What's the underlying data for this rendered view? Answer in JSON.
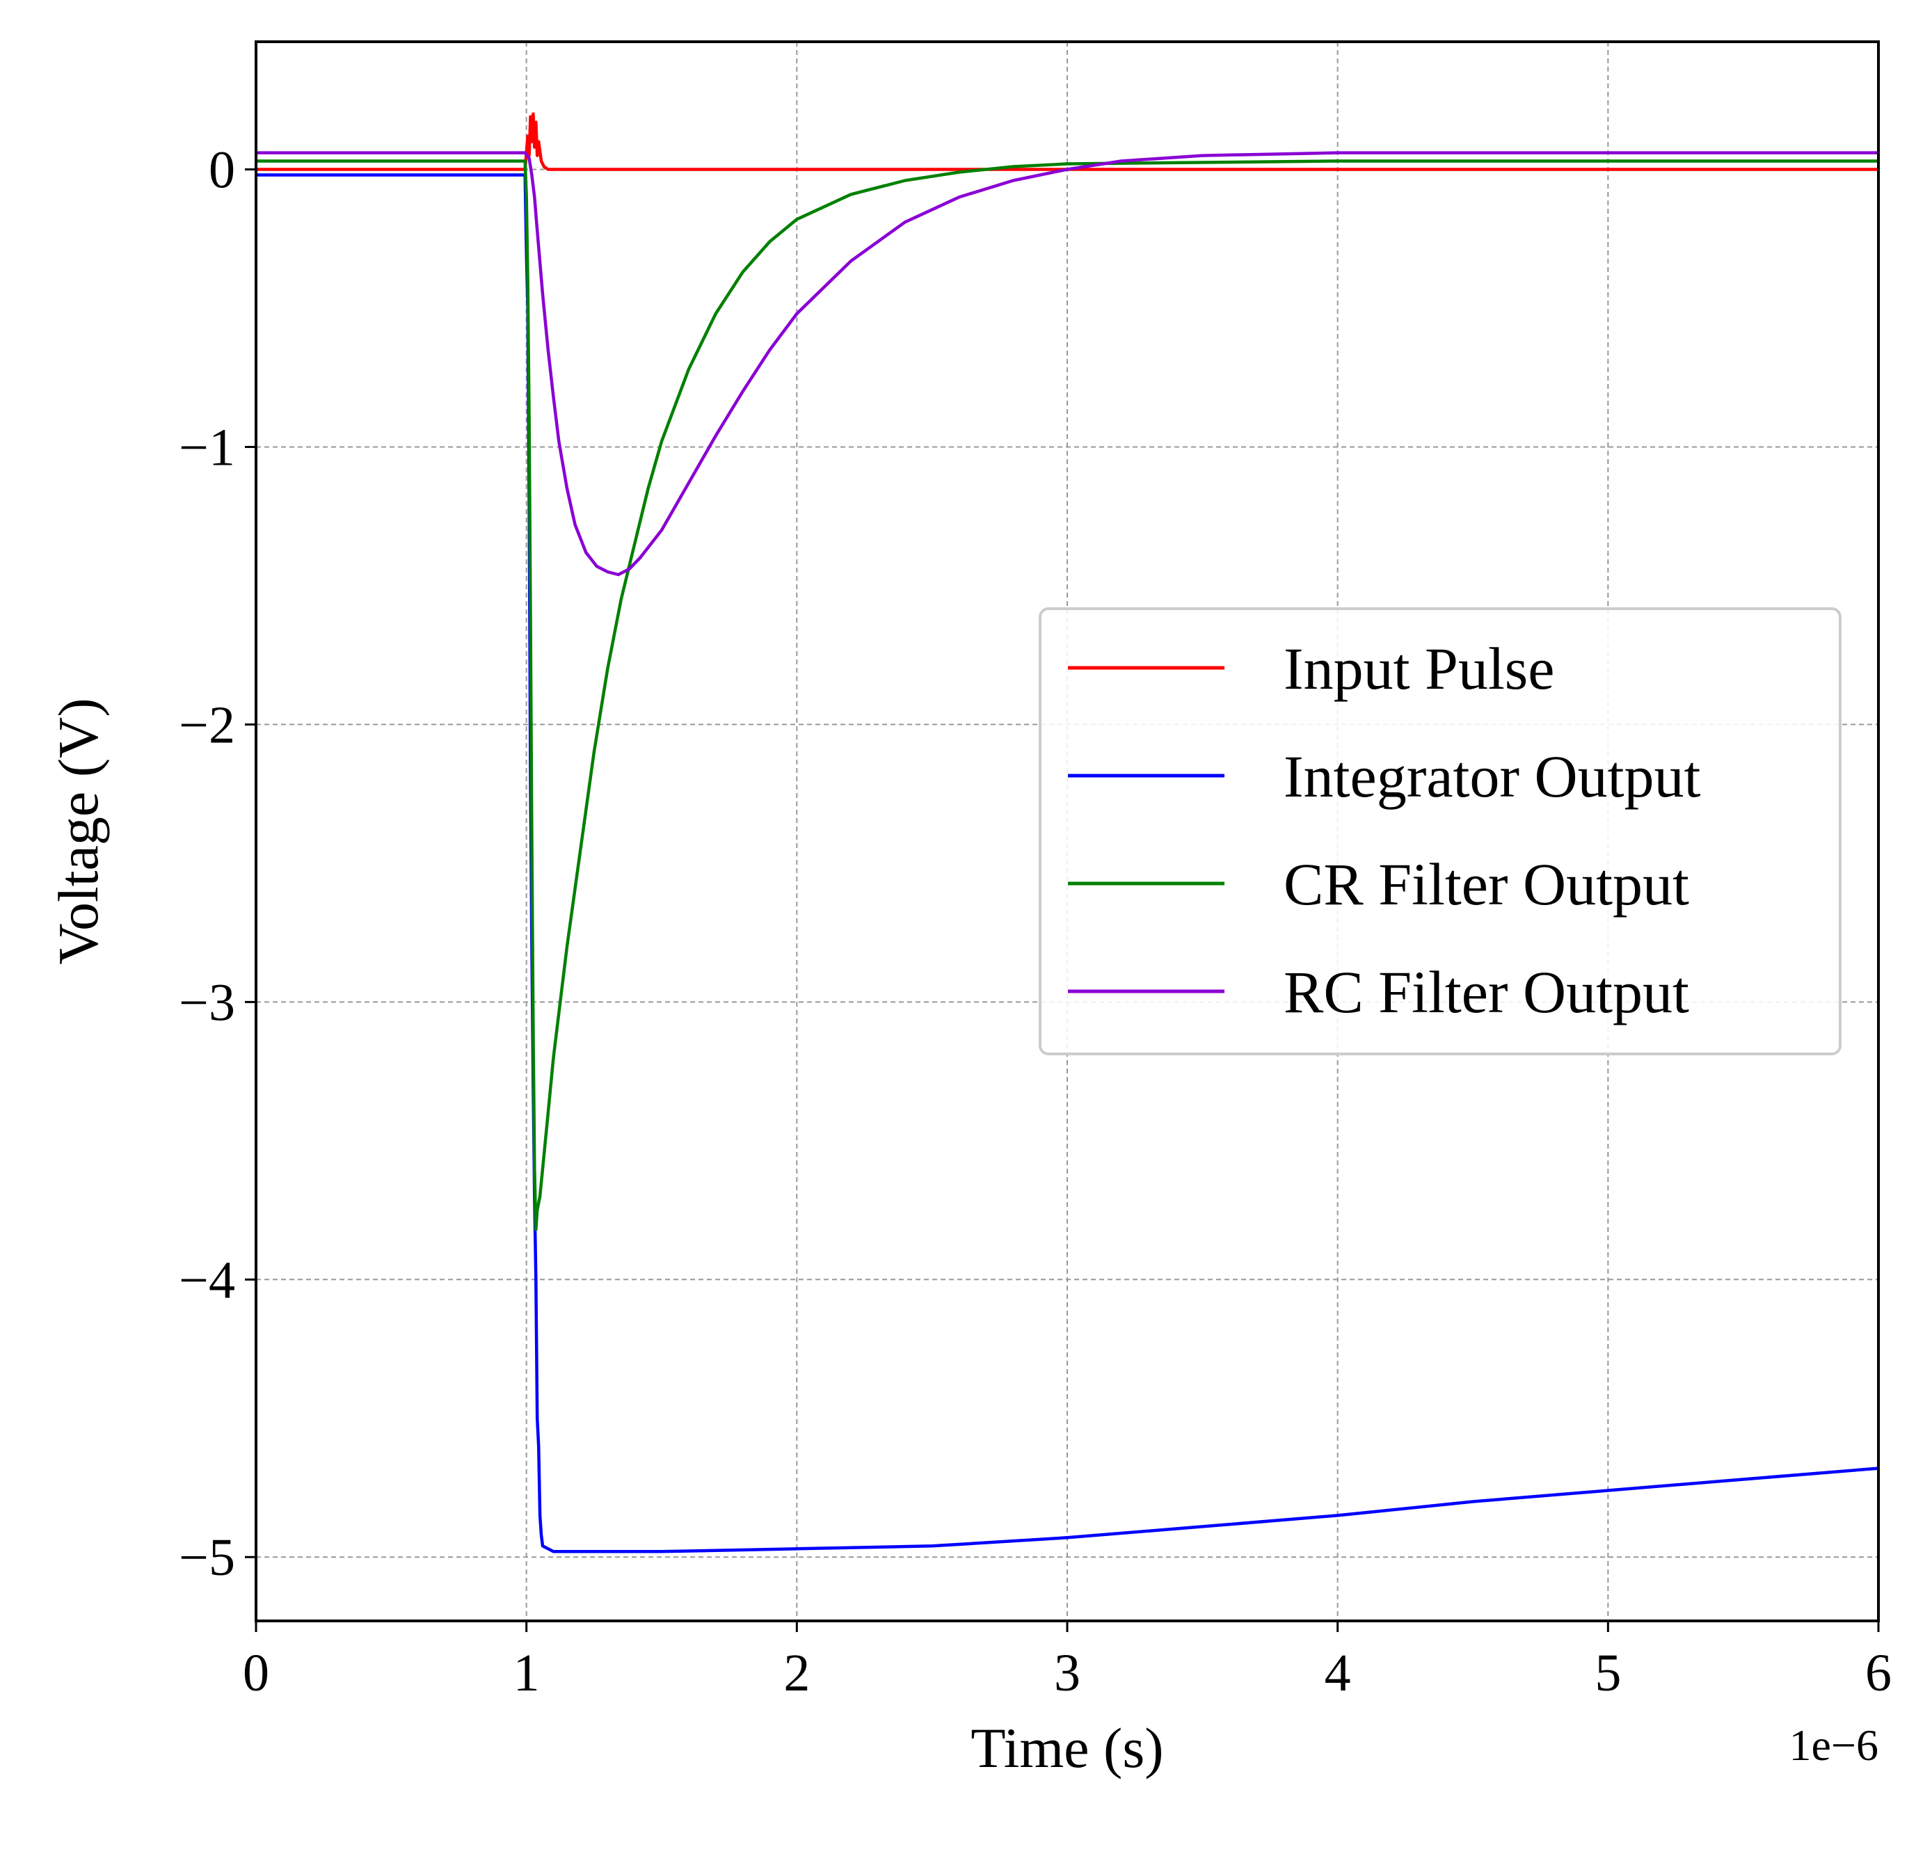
{
  "chart_data": {
    "type": "line",
    "xlabel": "Time (s)",
    "ylabel": "Voltage (V)",
    "x_offset_label": "1e−6",
    "xlim": [
      0,
      6
    ],
    "ylim": [
      -5.23,
      0.46
    ],
    "x_ticks": [
      0,
      1,
      2,
      3,
      4,
      5,
      6
    ],
    "x_tick_labels": [
      "0",
      "1",
      "2",
      "3",
      "4",
      "5",
      "6"
    ],
    "y_ticks": [
      0,
      -1,
      -2,
      -3,
      -4,
      -5
    ],
    "y_tick_labels": [
      "0",
      "−1",
      "−2",
      "−3",
      "−4",
      "−5"
    ],
    "grid": true,
    "legend_position": "center-right",
    "series": [
      {
        "name": "Input Pulse",
        "color": "#ff0000",
        "points": [
          [
            0,
            0
          ],
          [
            0.995,
            0
          ],
          [
            1.005,
            0.12
          ],
          [
            1.01,
            0.05
          ],
          [
            1.015,
            0.19
          ],
          [
            1.02,
            0.1
          ],
          [
            1.025,
            0.2
          ],
          [
            1.03,
            0.08
          ],
          [
            1.035,
            0.17
          ],
          [
            1.04,
            0.05
          ],
          [
            1.045,
            0.1
          ],
          [
            1.055,
            0.03
          ],
          [
            1.065,
            0.01
          ],
          [
            1.08,
            0
          ],
          [
            2,
            0
          ],
          [
            3,
            0
          ],
          [
            4,
            0
          ],
          [
            5,
            0
          ],
          [
            6,
            0
          ]
        ]
      },
      {
        "name": "Integrator Output",
        "color": "#0000ff",
        "points": [
          [
            0,
            -0.02
          ],
          [
            0.995,
            -0.02
          ],
          [
            1.0,
            -0.3
          ],
          [
            1.005,
            -0.5
          ],
          [
            1.01,
            -1.2
          ],
          [
            1.015,
            -2.2
          ],
          [
            1.02,
            -2.8
          ],
          [
            1.025,
            -3.3
          ],
          [
            1.03,
            -3.7
          ],
          [
            1.035,
            -4.0
          ],
          [
            1.04,
            -4.5
          ],
          [
            1.045,
            -4.6
          ],
          [
            1.05,
            -4.85
          ],
          [
            1.055,
            -4.92
          ],
          [
            1.06,
            -4.96
          ],
          [
            1.1,
            -4.98
          ],
          [
            1.5,
            -4.98
          ],
          [
            2.0,
            -4.97
          ],
          [
            2.5,
            -4.96
          ],
          [
            3.0,
            -4.93
          ],
          [
            3.5,
            -4.89
          ],
          [
            4.0,
            -4.85
          ],
          [
            4.5,
            -4.8
          ],
          [
            5.0,
            -4.76
          ],
          [
            5.5,
            -4.72
          ],
          [
            6.0,
            -4.68
          ]
        ]
      },
      {
        "name": "CR Filter Output",
        "color": "#008000",
        "points": [
          [
            0,
            0.03
          ],
          [
            0.995,
            0.03
          ],
          [
            1.0,
            -0.1
          ],
          [
            1.005,
            -0.4
          ],
          [
            1.01,
            -0.9
          ],
          [
            1.015,
            -1.6
          ],
          [
            1.02,
            -2.4
          ],
          [
            1.025,
            -3.1
          ],
          [
            1.03,
            -3.6
          ],
          [
            1.035,
            -3.82
          ],
          [
            1.04,
            -3.75
          ],
          [
            1.05,
            -3.7
          ],
          [
            1.06,
            -3.6
          ],
          [
            1.08,
            -3.4
          ],
          [
            1.1,
            -3.2
          ],
          [
            1.15,
            -2.8
          ],
          [
            1.2,
            -2.45
          ],
          [
            1.25,
            -2.1
          ],
          [
            1.3,
            -1.8
          ],
          [
            1.35,
            -1.55
          ],
          [
            1.4,
            -1.35
          ],
          [
            1.45,
            -1.15
          ],
          [
            1.5,
            -0.98
          ],
          [
            1.6,
            -0.72
          ],
          [
            1.7,
            -0.52
          ],
          [
            1.8,
            -0.37
          ],
          [
            1.9,
            -0.26
          ],
          [
            2.0,
            -0.18
          ],
          [
            2.2,
            -0.09
          ],
          [
            2.4,
            -0.04
          ],
          [
            2.6,
            -0.01
          ],
          [
            2.8,
            0.01
          ],
          [
            3.0,
            0.02
          ],
          [
            4.0,
            0.03
          ],
          [
            5.0,
            0.03
          ],
          [
            6.0,
            0.03
          ]
        ]
      },
      {
        "name": "RC Filter Output",
        "color": "#8a00d4",
        "points": [
          [
            0,
            0.06
          ],
          [
            0.995,
            0.06
          ],
          [
            1.01,
            0.04
          ],
          [
            1.02,
            -0.02
          ],
          [
            1.03,
            -0.1
          ],
          [
            1.04,
            -0.22
          ],
          [
            1.06,
            -0.45
          ],
          [
            1.08,
            -0.65
          ],
          [
            1.1,
            -0.82
          ],
          [
            1.12,
            -0.98
          ],
          [
            1.15,
            -1.15
          ],
          [
            1.18,
            -1.28
          ],
          [
            1.22,
            -1.38
          ],
          [
            1.26,
            -1.43
          ],
          [
            1.3,
            -1.45
          ],
          [
            1.34,
            -1.46
          ],
          [
            1.38,
            -1.44
          ],
          [
            1.42,
            -1.4
          ],
          [
            1.5,
            -1.3
          ],
          [
            1.6,
            -1.13
          ],
          [
            1.7,
            -0.96
          ],
          [
            1.8,
            -0.8
          ],
          [
            1.9,
            -0.65
          ],
          [
            2.0,
            -0.52
          ],
          [
            2.2,
            -0.33
          ],
          [
            2.4,
            -0.19
          ],
          [
            2.6,
            -0.1
          ],
          [
            2.8,
            -0.04
          ],
          [
            3.0,
            0.0
          ],
          [
            3.2,
            0.03
          ],
          [
            3.5,
            0.05
          ],
          [
            4.0,
            0.06
          ],
          [
            5.0,
            0.06
          ],
          [
            6.0,
            0.06
          ]
        ]
      }
    ]
  }
}
